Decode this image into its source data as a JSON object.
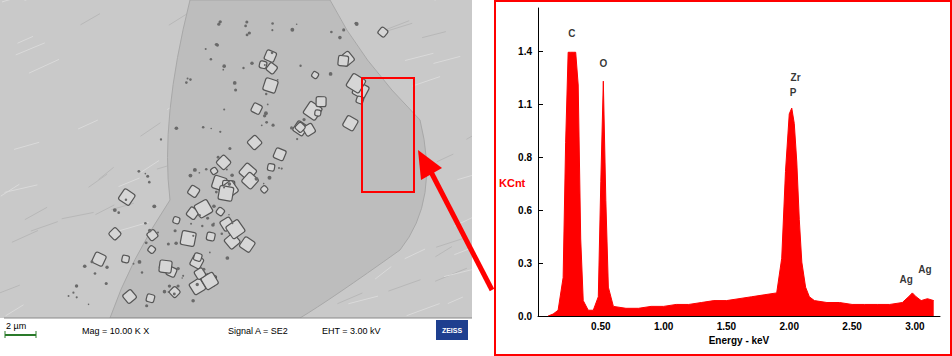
{
  "chart_data": {
    "type": "area",
    "xlabel": "Energy - keV",
    "ylabel": "KCnt",
    "color": "#ff0000",
    "x": [
      0.08,
      0.12,
      0.16,
      0.2,
      0.22,
      0.24,
      0.26,
      0.28,
      0.3,
      0.32,
      0.34,
      0.36,
      0.4,
      0.44,
      0.48,
      0.5,
      0.52,
      0.54,
      0.56,
      0.6,
      0.7,
      0.8,
      0.9,
      1.0,
      1.1,
      1.2,
      1.3,
      1.4,
      1.5,
      1.6,
      1.7,
      1.8,
      1.9,
      1.94,
      1.97,
      2.0,
      2.02,
      2.04,
      2.06,
      2.08,
      2.1,
      2.13,
      2.16,
      2.2,
      2.3,
      2.4,
      2.5,
      2.6,
      2.7,
      2.8,
      2.9,
      2.95,
      2.98,
      3.01,
      3.05,
      3.1,
      3.15
    ],
    "values": [
      0.0,
      0.01,
      0.03,
      0.2,
      0.9,
      1.37,
      1.37,
      1.37,
      1.37,
      1.2,
      0.4,
      0.08,
      0.03,
      0.03,
      0.1,
      0.7,
      1.22,
      0.6,
      0.15,
      0.05,
      0.04,
      0.04,
      0.05,
      0.05,
      0.06,
      0.06,
      0.07,
      0.08,
      0.08,
      0.09,
      0.1,
      0.11,
      0.12,
      0.3,
      0.75,
      1.05,
      1.08,
      1.0,
      0.8,
      0.5,
      0.28,
      0.15,
      0.1,
      0.08,
      0.07,
      0.07,
      0.06,
      0.06,
      0.06,
      0.06,
      0.07,
      0.1,
      0.12,
      0.1,
      0.08,
      0.09,
      0.08
    ],
    "xlim": [
      0,
      3.2
    ],
    "xticks": [
      {
        "value": 0.5,
        "label": "0.50"
      },
      {
        "value": 1.0,
        "label": "1.00"
      },
      {
        "value": 1.5,
        "label": "1.50"
      },
      {
        "value": 2.0,
        "label": "2.00"
      },
      {
        "value": 2.5,
        "label": "2.50"
      },
      {
        "value": 3.0,
        "label": "3.00"
      }
    ],
    "ylim": [
      0,
      1.6
    ],
    "yticks": [
      {
        "value": 0,
        "label": "0.0"
      },
      {
        "value": 0.275,
        "label": "0.3"
      },
      {
        "value": 0.55,
        "label": "0.6"
      },
      {
        "value": 0.825,
        "label": "0.8"
      },
      {
        "value": 1.1,
        "label": "1.1"
      },
      {
        "value": 1.375,
        "label": "1.4"
      }
    ],
    "grid": false,
    "annotations": [
      {
        "text": "C",
        "x": 0.27,
        "y": 1.47
      },
      {
        "text": "O",
        "x": 0.52,
        "y": 1.31
      },
      {
        "text": "Zr",
        "x": 2.05,
        "y": 1.24
      },
      {
        "text": "P",
        "x": 2.03,
        "y": 1.16
      },
      {
        "text": "Ag",
        "x": 2.93,
        "y": 0.19
      },
      {
        "text": "Ag",
        "x": 3.08,
        "y": 0.24
      }
    ]
  },
  "micrograph": {
    "scale_bar": "2 µm",
    "magnification": "Mag = 10.00 K X",
    "signal": "Signal A = SE2",
    "voltage": "EHT = 3.00 kV",
    "logo": "ZEISS"
  }
}
